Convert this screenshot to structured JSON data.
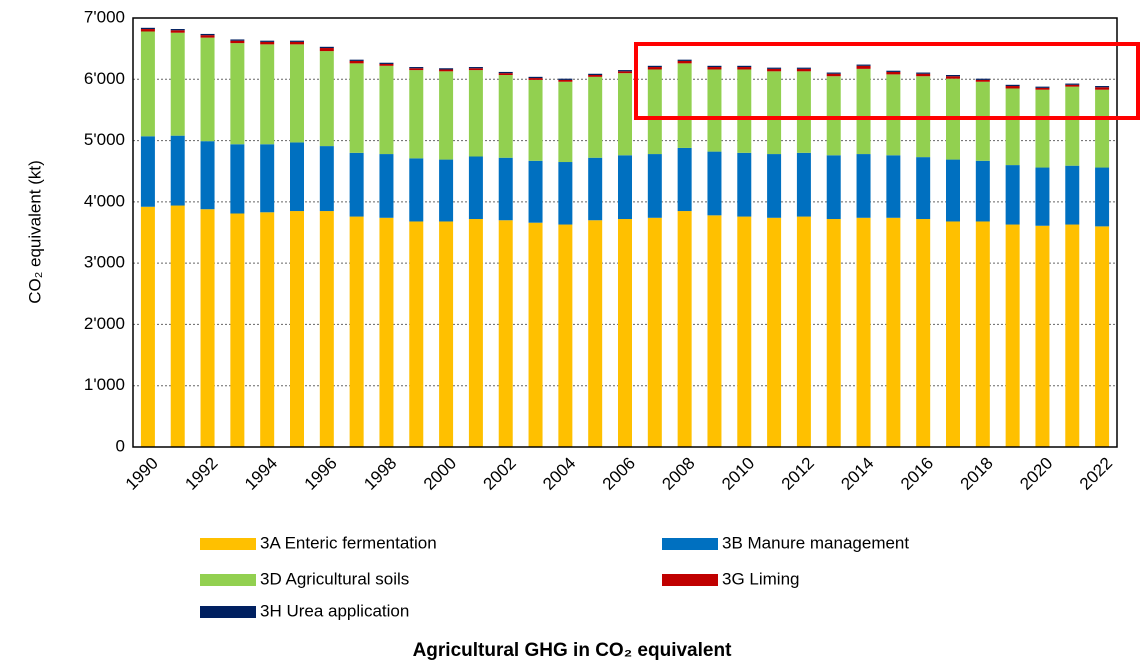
{
  "chart_data": {
    "type": "stacked_bar",
    "title": "Agricultural GHG in CO₂ equivalent",
    "y_label": "CO₂ equivalent (kt)",
    "categories": [
      "1990",
      null,
      "1992",
      null,
      "1994",
      null,
      "1996",
      null,
      "1998",
      null,
      "2000",
      null,
      "2002",
      null,
      "2004",
      null,
      "2006",
      null,
      "2008",
      null,
      "2010",
      null,
      "2012",
      null,
      "2014",
      null,
      "2016",
      null,
      "2018",
      null,
      "2020",
      null,
      "2022"
    ],
    "series": [
      {
        "name": "3A Enteric fermentation",
        "color": "#ffc000",
        "values": [
          3920,
          3940,
          3880,
          3810,
          3830,
          3850,
          3850,
          3760,
          3740,
          3680,
          3680,
          3720,
          3700,
          3660,
          3630,
          3700,
          3720,
          3740,
          3850,
          3780,
          3760,
          3740,
          3760,
          3720,
          3740,
          3740,
          3720,
          3680,
          3680,
          3630,
          3610,
          3630,
          3600
        ]
      },
      {
        "name": "3B Manure management",
        "color": "#0070c0",
        "values": [
          1150,
          1140,
          1110,
          1130,
          1110,
          1120,
          1060,
          1040,
          1040,
          1030,
          1010,
          1020,
          1020,
          1010,
          1020,
          1020,
          1040,
          1040,
          1030,
          1040,
          1040,
          1040,
          1040,
          1040,
          1040,
          1020,
          1010,
          1010,
          990,
          970,
          950,
          960,
          960
        ]
      },
      {
        "name": "3D Agricultural soils",
        "color": "#92d050",
        "values": [
          1710,
          1680,
          1690,
          1650,
          1630,
          1600,
          1550,
          1460,
          1440,
          1440,
          1440,
          1410,
          1350,
          1320,
          1310,
          1320,
          1340,
          1380,
          1380,
          1340,
          1360,
          1350,
          1330,
          1290,
          1390,
          1320,
          1320,
          1320,
          1290,
          1250,
          1270,
          1290,
          1270
        ]
      },
      {
        "name": "3G Liming",
        "color": "#c00000",
        "values": [
          40,
          40,
          40,
          40,
          40,
          40,
          50,
          40,
          30,
          30,
          30,
          30,
          30,
          30,
          30,
          30,
          30,
          40,
          40,
          40,
          40,
          40,
          40,
          40,
          50,
          40,
          40,
          40,
          30,
          40,
          30,
          30,
          40
        ]
      },
      {
        "name": "3H Urea application",
        "color": "#002060",
        "values": [
          20,
          20,
          20,
          20,
          20,
          20,
          20,
          20,
          20,
          20,
          20,
          20,
          20,
          20,
          20,
          20,
          20,
          20,
          20,
          20,
          20,
          20,
          20,
          20,
          20,
          20,
          20,
          20,
          20,
          20,
          20,
          20,
          20
        ]
      }
    ],
    "ylim": [
      0,
      7000
    ],
    "yticks": [
      0,
      {
        "value": 1000,
        "label": "1'000"
      },
      {
        "value": 2000,
        "label": "2'000"
      },
      {
        "value": 3000,
        "label": "3'000"
      },
      {
        "value": 4000,
        "label": "4'000"
      },
      {
        "value": 5000,
        "label": "5'000"
      },
      {
        "value": 6000,
        "label": "6'000"
      },
      {
        "value": 7000,
        "label": "7'000"
      }
    ],
    "grid": true
  }
}
